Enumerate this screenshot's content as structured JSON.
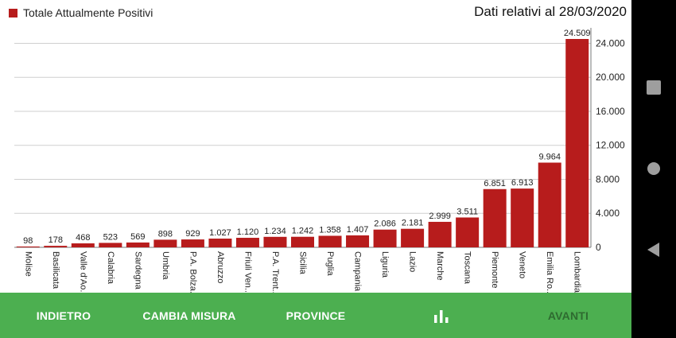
{
  "legend": {
    "label": "Totale Attualmente Positivi",
    "color": "#b71c1c"
  },
  "date_label": "Dati relativi al 28/03/2020",
  "chart_data": {
    "type": "bar",
    "title": "",
    "categories": [
      "Molise",
      "Basilicata",
      "Valle d'Ao..",
      "Calabria",
      "Sardegna",
      "Umbria",
      "P.A. Bolza..",
      "Abruzzo",
      "Friuli Ven..",
      "P.A. Trent..",
      "Sicilia",
      "Puglia",
      "Campania",
      "Liguria",
      "Lazio",
      "Marche",
      "Toscana",
      "Piemonte",
      "Veneto",
      "Emilia Ro..",
      "Lombardia"
    ],
    "value_labels": [
      "98",
      "178",
      "468",
      "523",
      "569",
      "898",
      "929",
      "1.027",
      "1.120",
      "1.234",
      "1.242",
      "1.358",
      "1.407",
      "2.086",
      "2.181",
      "2.999",
      "3.511",
      "6.851",
      "6.913",
      "9.964",
      "24.509"
    ],
    "series": [
      {
        "name": "Totale Attualmente Positivi",
        "values": [
          98,
          178,
          468,
          523,
          569,
          898,
          929,
          1027,
          1120,
          1234,
          1242,
          1358,
          1407,
          2086,
          2181,
          2999,
          3511,
          6851,
          6913,
          9964,
          24509
        ]
      }
    ],
    "y_ticks": [
      0,
      4000,
      8000,
      12000,
      16000,
      20000,
      24000
    ],
    "y_tick_labels": [
      "0",
      "4.000",
      "8.000",
      "12.000",
      "16.000",
      "20.000",
      "24.000"
    ],
    "ylim": [
      0,
      24509
    ],
    "y_axis_position": "right",
    "grid": true,
    "legend_position": "top-left",
    "bar_color": "#b71c1c",
    "xlabel": "",
    "ylabel": ""
  },
  "nav": {
    "back": "INDIETRO",
    "change_measure": "CAMBIA MISURA",
    "provinces": "PROVINCE",
    "chart_icon": "bar-chart-icon",
    "next": "AVANTI",
    "bar_color": "#4caf50"
  },
  "system_nav": {
    "icons": [
      "recents-icon",
      "home-icon",
      "back-icon"
    ]
  }
}
